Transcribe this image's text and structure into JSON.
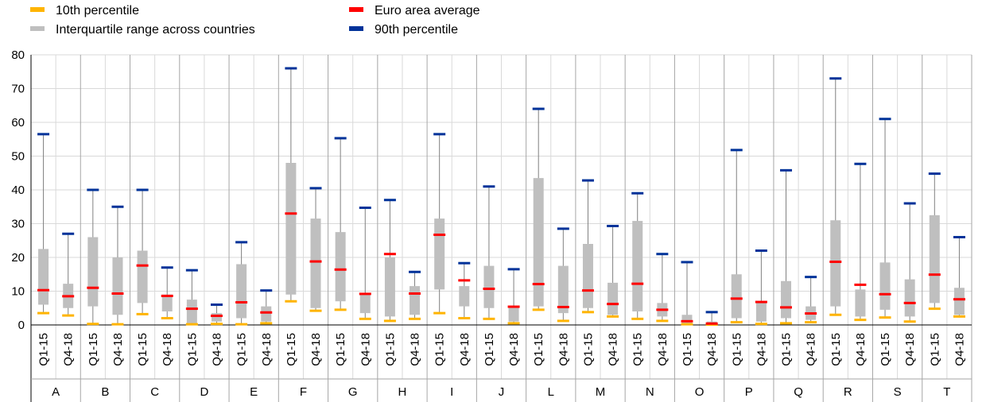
{
  "legend": [
    {
      "key": "p10",
      "label": "10th percentile",
      "color": "#FFB400"
    },
    {
      "key": "iqr",
      "label": "Interquartile range across countries",
      "color": "#BFBFBF"
    },
    {
      "key": "avg",
      "label": "Euro area average",
      "color": "#FF0000"
    },
    {
      "key": "p90",
      "label": "90th percentile",
      "color": "#003299"
    }
  ],
  "chart_data": {
    "type": "box",
    "ylim": [
      0,
      80
    ],
    "yticks": [
      0,
      10,
      20,
      30,
      40,
      50,
      60,
      70,
      80
    ],
    "grid": true,
    "legend_position": "top",
    "periods": [
      "Q1-15",
      "Q4-18"
    ],
    "groups": [
      "A",
      "B",
      "C",
      "D",
      "E",
      "F",
      "G",
      "H",
      "I",
      "J",
      "L",
      "M",
      "N",
      "O",
      "P",
      "Q",
      "R",
      "S",
      "T"
    ],
    "points": [
      {
        "group": "A",
        "period": "Q1-15",
        "p10": 3.5,
        "q1": 6,
        "q3": 22.5,
        "avg": 10.3,
        "p90": 56.5
      },
      {
        "group": "A",
        "period": "Q4-18",
        "p10": 2.8,
        "q1": 5,
        "q3": 12.2,
        "avg": 8.5,
        "p90": 27
      },
      {
        "group": "B",
        "period": "Q1-15",
        "p10": 0.3,
        "q1": 5.5,
        "q3": 26,
        "avg": 11,
        "p90": 40
      },
      {
        "group": "B",
        "period": "Q4-18",
        "p10": 0.2,
        "q1": 3,
        "q3": 20,
        "avg": 9.3,
        "p90": 35
      },
      {
        "group": "C",
        "period": "Q1-15",
        "p10": 3.2,
        "q1": 6.5,
        "q3": 22,
        "avg": 17.6,
        "p90": 40
      },
      {
        "group": "C",
        "period": "Q4-18",
        "p10": 2,
        "q1": 4,
        "q3": 9,
        "avg": 8.6,
        "p90": 17
      },
      {
        "group": "D",
        "period": "Q1-15",
        "p10": 0.2,
        "q1": 0.5,
        "q3": 7.5,
        "avg": 4.8,
        "p90": 16.2
      },
      {
        "group": "D",
        "period": "Q4-18",
        "p10": 0.3,
        "q1": 1,
        "q3": 3.5,
        "avg": 2.7,
        "p90": 6
      },
      {
        "group": "E",
        "period": "Q1-15",
        "p10": 0.2,
        "q1": 2,
        "q3": 18,
        "avg": 6.7,
        "p90": 24.5
      },
      {
        "group": "E",
        "period": "Q4-18",
        "p10": 0.5,
        "q1": 1,
        "q3": 5.5,
        "avg": 3.7,
        "p90": 10.2
      },
      {
        "group": "F",
        "period": "Q1-15",
        "p10": 7,
        "q1": 9,
        "q3": 48,
        "avg": 33,
        "p90": 76
      },
      {
        "group": "F",
        "period": "Q4-18",
        "p10": 4.2,
        "q1": 5,
        "q3": 31.5,
        "avg": 18.8,
        "p90": 40.5
      },
      {
        "group": "G",
        "period": "Q1-15",
        "p10": 4.5,
        "q1": 7,
        "q3": 27.5,
        "avg": 16.4,
        "p90": 55.3
      },
      {
        "group": "G",
        "period": "Q4-18",
        "p10": 1.8,
        "q1": 3.5,
        "q3": 9.5,
        "avg": 9.2,
        "p90": 34.7
      },
      {
        "group": "H",
        "period": "Q1-15",
        "p10": 1.2,
        "q1": 2.5,
        "q3": 20,
        "avg": 21,
        "p90": 37
      },
      {
        "group": "H",
        "period": "Q4-18",
        "p10": 1.8,
        "q1": 3,
        "q3": 11.5,
        "avg": 9.3,
        "p90": 15.7
      },
      {
        "group": "I",
        "period": "Q1-15",
        "p10": 3.5,
        "q1": 10.5,
        "q3": 31.5,
        "avg": 26.7,
        "p90": 56.5
      },
      {
        "group": "I",
        "period": "Q4-18",
        "p10": 2,
        "q1": 5.5,
        "q3": 11.5,
        "avg": 13.2,
        "p90": 18.3
      },
      {
        "group": "J",
        "period": "Q1-15",
        "p10": 1.8,
        "q1": 5,
        "q3": 17.5,
        "avg": 10.7,
        "p90": 41
      },
      {
        "group": "J",
        "period": "Q4-18",
        "p10": 0.5,
        "q1": 1,
        "q3": 5.5,
        "avg": 5.4,
        "p90": 16.5
      },
      {
        "group": "L",
        "period": "Q1-15",
        "p10": 4.5,
        "q1": 5.5,
        "q3": 43.5,
        "avg": 12.1,
        "p90": 64
      },
      {
        "group": "L",
        "period": "Q4-18",
        "p10": 1.2,
        "q1": 3.5,
        "q3": 17.5,
        "avg": 5.3,
        "p90": 28.5
      },
      {
        "group": "M",
        "period": "Q1-15",
        "p10": 3.8,
        "q1": 5,
        "q3": 24,
        "avg": 10.2,
        "p90": 42.8
      },
      {
        "group": "M",
        "period": "Q4-18",
        "p10": 2.5,
        "q1": 3,
        "q3": 12.5,
        "avg": 6.2,
        "p90": 29.3
      },
      {
        "group": "N",
        "period": "Q1-15",
        "p10": 1.8,
        "q1": 4,
        "q3": 30.8,
        "avg": 12.2,
        "p90": 39
      },
      {
        "group": "N",
        "period": "Q4-18",
        "p10": 1.2,
        "q1": 2.5,
        "q3": 6.5,
        "avg": 4.5,
        "p90": 21
      },
      {
        "group": "O",
        "period": "Q1-15",
        "p10": 0.2,
        "q1": 0.5,
        "q3": 3,
        "avg": 1.1,
        "p90": 18.6
      },
      {
        "group": "O",
        "period": "Q4-18",
        "p10": 0.1,
        "q1": 0.2,
        "q3": 1,
        "avg": 0.4,
        "p90": 3.8
      },
      {
        "group": "P",
        "period": "Q1-15",
        "p10": 0.8,
        "q1": 2,
        "q3": 15,
        "avg": 7.8,
        "p90": 51.8
      },
      {
        "group": "P",
        "period": "Q4-18",
        "p10": 0.3,
        "q1": 1,
        "q3": 7,
        "avg": 6.8,
        "p90": 22
      },
      {
        "group": "Q",
        "period": "Q1-15",
        "p10": 0.5,
        "q1": 2,
        "q3": 13,
        "avg": 5.2,
        "p90": 45.8
      },
      {
        "group": "Q",
        "period": "Q4-18",
        "p10": 0.8,
        "q1": 1.5,
        "q3": 5.5,
        "avg": 3.4,
        "p90": 14.2
      },
      {
        "group": "R",
        "period": "Q1-15",
        "p10": 3,
        "q1": 5.5,
        "q3": 31,
        "avg": 18.7,
        "p90": 73
      },
      {
        "group": "R",
        "period": "Q4-18",
        "p10": 1.5,
        "q1": 2.5,
        "q3": 10.5,
        "avg": 11.9,
        "p90": 47.7
      },
      {
        "group": "S",
        "period": "Q1-15",
        "p10": 2.2,
        "q1": 4.5,
        "q3": 18.5,
        "avg": 9.1,
        "p90": 61
      },
      {
        "group": "S",
        "period": "Q4-18",
        "p10": 1,
        "q1": 2.5,
        "q3": 13.5,
        "avg": 6.5,
        "p90": 36
      },
      {
        "group": "T",
        "period": "Q1-15",
        "p10": 4.8,
        "q1": 6.5,
        "q3": 32.5,
        "avg": 14.9,
        "p90": 44.8
      },
      {
        "group": "T",
        "period": "Q4-18",
        "p10": 2.5,
        "q1": 3,
        "q3": 11,
        "avg": 7.6,
        "p90": 26
      }
    ]
  }
}
